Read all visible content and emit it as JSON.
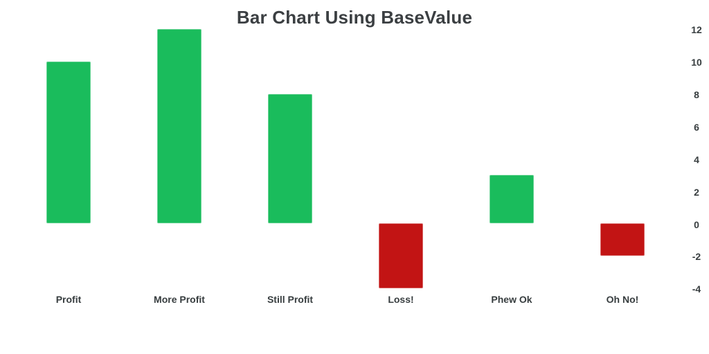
{
  "title": "Bar Chart Using BaseValue",
  "chart_data": {
    "type": "bar",
    "title": "Bar Chart Using BaseValue",
    "categories": [
      "Profit",
      "More Profit",
      "Still Profit",
      "Loss!",
      "Phew Ok",
      "Oh No!"
    ],
    "values": [
      10,
      12,
      8,
      -4,
      3,
      -2
    ],
    "base_value": 0,
    "xlabel": "",
    "ylabel": "",
    "ylim": [
      -4,
      12
    ],
    "y_ticks": [
      12,
      10,
      8,
      6,
      4,
      2,
      0,
      -2,
      -4
    ],
    "y_axis_position": "right",
    "grid": false,
    "legend": false,
    "background": "#ffffff",
    "colors": {
      "positive": "#1abc5c",
      "negative": "#c21414",
      "title_text": "#3b3f42",
      "label_text": "#373d3f"
    }
  }
}
